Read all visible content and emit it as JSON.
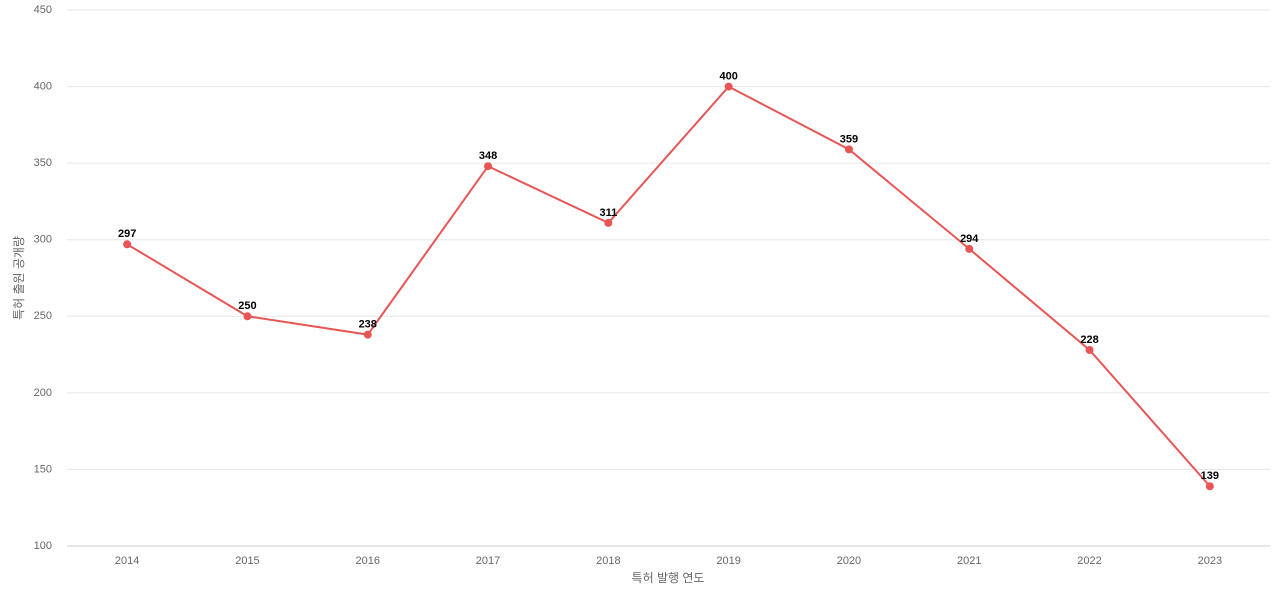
{
  "chart_data": {
    "type": "line",
    "x_label": "특허 발행 연도",
    "y_label": "특허 출원 공개량",
    "categories": [
      "2014",
      "2015",
      "2016",
      "2017",
      "2018",
      "2019",
      "2020",
      "2021",
      "2022",
      "2023"
    ],
    "series": [
      {
        "name": "특허 출원 공개량",
        "color": "#e85555",
        "values": [
          297,
          250,
          238,
          348,
          311,
          400,
          359,
          294,
          228,
          139
        ]
      }
    ],
    "ylim": [
      100,
      450
    ],
    "yticks": [
      100,
      150,
      200,
      250,
      300,
      350,
      400,
      450
    ],
    "grid": true,
    "data_labels": true
  }
}
